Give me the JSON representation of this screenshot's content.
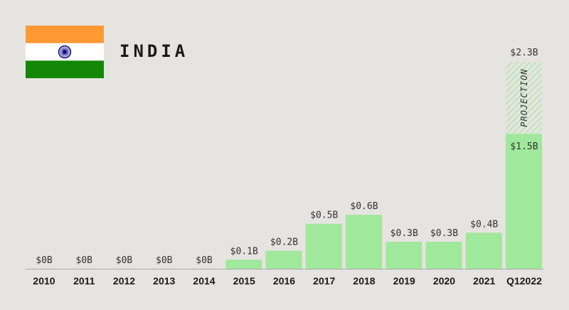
{
  "header": {
    "country": "INDIA"
  },
  "flag": {
    "name": "India",
    "colors": {
      "saffron": "#ff9933",
      "white": "#ffffff",
      "green": "#138808",
      "chakra": "#000080"
    }
  },
  "colors": {
    "bar": "#a0e89b",
    "projection_stripe": "#a0e89b",
    "baseline": "#aaaaaa"
  },
  "chart_data": {
    "type": "bar",
    "title": "INDIA",
    "xlabel": "",
    "ylabel": "",
    "ylim": [
      0,
      2.3
    ],
    "categories": [
      "2010",
      "2011",
      "2012",
      "2013",
      "2014",
      "2015",
      "2016",
      "2017",
      "2018",
      "2019",
      "2020",
      "2021",
      "Q12022"
    ],
    "values": [
      0,
      0,
      0,
      0,
      0,
      0.1,
      0.2,
      0.5,
      0.6,
      0.3,
      0.3,
      0.4,
      1.5
    ],
    "labels": [
      "$0B",
      "$0B",
      "$0B",
      "$0B",
      "$0B",
      "$0.1B",
      "$0.2B",
      "$0.5B",
      "$0.6B",
      "$0.3B",
      "$0.3B",
      "$0.4B",
      "$1.5B"
    ],
    "projection": {
      "category": "Q12022",
      "value": 2.3,
      "label": "$2.3B",
      "text": "PROJECTION"
    }
  }
}
